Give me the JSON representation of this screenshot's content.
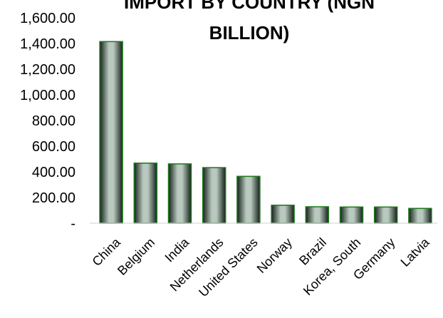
{
  "chart_data": {
    "type": "bar",
    "title_lines": [
      "IMPORT BY COUNTRY (NGN",
      "BILLION)"
    ],
    "categories": [
      "China",
      "Belgium",
      "India",
      "Netherlands",
      "United States",
      "Norway",
      "Brazil",
      "Korea, South",
      "Germany",
      "Latvia"
    ],
    "values": [
      1415,
      468,
      462,
      433,
      365,
      140,
      128,
      126,
      126,
      115
    ],
    "ylim": [
      0,
      1600
    ],
    "yticks": [
      0,
      200,
      400,
      600,
      800,
      1000,
      1200,
      1400,
      1600
    ],
    "ytick_labels": [
      "-",
      "200.00",
      "400.00",
      "600.00",
      "800.00",
      "1,000.00",
      "1,200.00",
      "1,400.00",
      "1,600.00"
    ],
    "grid": false,
    "legend": "none",
    "bar_color_dark": "#14201a",
    "bar_color_light": "#b9c9bf",
    "bar_outline": "#1d7a1d"
  }
}
